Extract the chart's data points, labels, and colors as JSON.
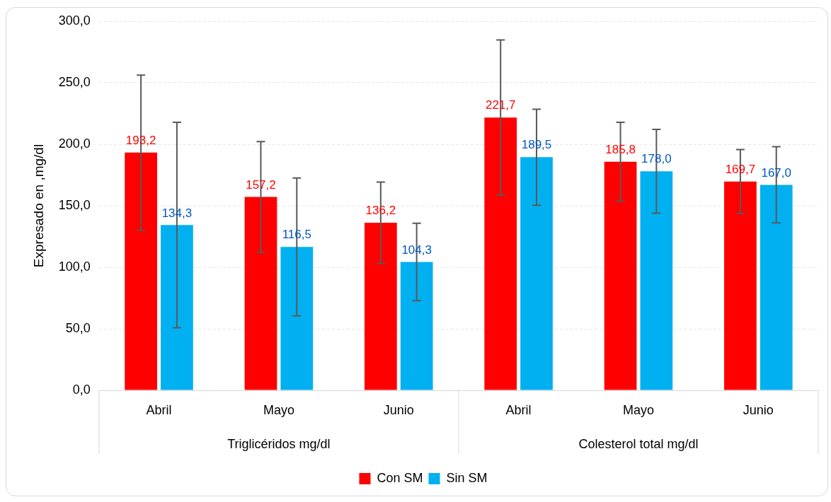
{
  "chart_data": {
    "type": "bar",
    "ylabel": "Expresado en ,mg/dl",
    "categories": [
      "Abril",
      "Mayo",
      "Junio",
      "Abril",
      "Mayo",
      "Junio"
    ],
    "series": [
      {
        "name": "Con SM",
        "color": "#ff0000",
        "values": [
          193.2,
          157.2,
          136.2,
          221.7,
          185.8,
          169.7
        ],
        "value_labels": [
          "193,2",
          "157,2",
          "136,2",
          "221,7",
          "185,8",
          "169,7"
        ],
        "errors": [
          63,
          45,
          33,
          63,
          32,
          26
        ]
      },
      {
        "name": "Sin SM",
        "color": "#00b0f0",
        "values": [
          134.3,
          116.5,
          104.3,
          189.5,
          178.0,
          167.0
        ],
        "value_labels": [
          "134,3",
          "116,5",
          "104,3",
          "189,5",
          "178,0",
          "167,0"
        ],
        "errors": [
          83.5,
          56,
          31.5,
          39,
          34,
          31
        ]
      }
    ],
    "annotations": [
      "Triglicéridos mg/dl",
      "Colesterol total mg/dl"
    ],
    "ylim": [
      0,
      300
    ],
    "yticks": [
      {
        "value": 0,
        "label": "0,0"
      },
      {
        "value": 50,
        "label": "50,0"
      },
      {
        "value": 100,
        "label": "100,0"
      },
      {
        "value": 150,
        "label": "150,0"
      },
      {
        "value": 200,
        "label": "200,0"
      },
      {
        "value": 250,
        "label": "250,0"
      },
      {
        "value": 300,
        "label": "300,0"
      }
    ],
    "grid": "y",
    "legend": "bottom"
  }
}
